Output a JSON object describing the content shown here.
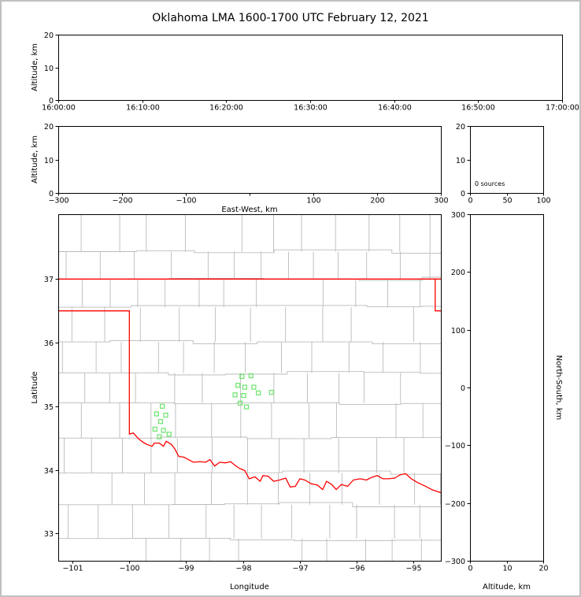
{
  "window": {
    "title": "Oklahoma LMA 1600-1700 UTC February 12, 2021"
  },
  "colors": {
    "frame": "#c0c0c0",
    "background": "#ffffff",
    "axis": "#000000",
    "county_line": "#bbbbbb",
    "state_border": "#ff0000",
    "source_marker": "#6be36b"
  },
  "chart_data": [
    {
      "id": "time_height",
      "type": "scatter",
      "xlabel": "",
      "ylabel": "Altitude, km",
      "xlim": [
        0,
        6
      ],
      "xticks": [
        0,
        1,
        2,
        3,
        4,
        5,
        6
      ],
      "xtick_labels": [
        "16:00:00",
        "16:10:00",
        "16:20:00",
        "16:30:00",
        "16:40:00",
        "16:50:00",
        "17:00:00"
      ],
      "ylim": [
        0,
        20
      ],
      "yticks": [
        0,
        10,
        20
      ],
      "ytick_labels": [
        "0",
        "10",
        "20"
      ],
      "points": []
    },
    {
      "id": "ew_height",
      "type": "scatter",
      "xlabel": "East-West, km",
      "ylabel": "Altitude, km",
      "xlim": [
        -300,
        300
      ],
      "xticks": [
        -300,
        -200,
        -100,
        0,
        100,
        200,
        300
      ],
      "xtick_labels": [
        "−300",
        "−200",
        "−100",
        "",
        "100",
        "200",
        "300"
      ],
      "ylim": [
        0,
        20
      ],
      "yticks": [
        0,
        10,
        20
      ],
      "ytick_labels": [
        "0",
        "10",
        "20"
      ],
      "points": []
    },
    {
      "id": "alt_histogram",
      "type": "bar",
      "annotation": "0 sources",
      "xlim": [
        0,
        100
      ],
      "xticks": [
        0,
        50,
        100
      ],
      "xtick_labels": [
        "0",
        "50",
        "100"
      ],
      "ylim": [
        0,
        20
      ],
      "yticks": [
        0,
        10,
        20
      ],
      "ytick_labels": [
        "0",
        "10",
        "20"
      ],
      "values": []
    },
    {
      "id": "plan_view",
      "type": "scatter",
      "xlabel": "Longitude",
      "ylabel": "Latitude",
      "xlim": [
        -101.25,
        -94.52
      ],
      "xticks": [
        -101,
        -100,
        -99,
        -98,
        -97,
        -96,
        -95
      ],
      "xtick_labels": [
        "−101",
        "−100",
        "−99",
        "−98",
        "−97",
        "−96",
        "−95"
      ],
      "ylim": [
        32.57,
        38.02
      ],
      "yticks": [
        33,
        34,
        35,
        36,
        37
      ],
      "ytick_labels": [
        "33",
        "34",
        "35",
        "36",
        "37"
      ],
      "points": [
        [
          -99.42,
          35.0
        ],
        [
          -99.52,
          34.88
        ],
        [
          -99.36,
          34.86
        ],
        [
          -99.45,
          34.76
        ],
        [
          -99.55,
          34.64
        ],
        [
          -99.4,
          34.62
        ],
        [
          -99.3,
          34.56
        ],
        [
          -99.47,
          34.52
        ],
        [
          -98.02,
          35.47
        ],
        [
          -97.86,
          35.48
        ],
        [
          -98.09,
          35.33
        ],
        [
          -97.97,
          35.3
        ],
        [
          -97.81,
          35.3
        ],
        [
          -98.14,
          35.18
        ],
        [
          -97.99,
          35.17
        ],
        [
          -97.73,
          35.21
        ],
        [
          -97.5,
          35.22
        ],
        [
          -98.05,
          35.05
        ],
        [
          -97.94,
          34.99
        ]
      ],
      "layers": {
        "county_grid": {
          "seed": 20210212,
          "lat_step": 0.45,
          "lon_step": 0.53
        },
        "state_border": [
          {
            "name": "kansas-oklahoma-border",
            "points": [
              [
                -101.25,
                37.0
              ],
              [
                -94.52,
                37.0
              ]
            ]
          },
          {
            "name": "oklahoma-west-south-border",
            "points": [
              [
                -101.25,
                36.5
              ],
              [
                -100.0,
                36.5
              ],
              [
                -100.0,
                34.56
              ],
              [
                -99.93,
                34.58
              ],
              [
                -99.85,
                34.5
              ],
              [
                -99.77,
                34.44
              ],
              [
                -99.69,
                34.4
              ],
              [
                -99.6,
                34.37
              ],
              [
                -99.56,
                34.42
              ],
              [
                -99.47,
                34.42
              ],
              [
                -99.4,
                34.37
              ],
              [
                -99.35,
                34.45
              ],
              [
                -99.26,
                34.4
              ],
              [
                -99.2,
                34.33
              ],
              [
                -99.13,
                34.21
              ],
              [
                -99.04,
                34.2
              ],
              [
                -98.96,
                34.16
              ],
              [
                -98.87,
                34.12
              ],
              [
                -98.76,
                34.13
              ],
              [
                -98.66,
                34.12
              ],
              [
                -98.58,
                34.16
              ],
              [
                -98.5,
                34.06
              ],
              [
                -98.41,
                34.12
              ],
              [
                -98.31,
                34.11
              ],
              [
                -98.22,
                34.13
              ],
              [
                -98.14,
                34.07
              ],
              [
                -98.06,
                34.02
              ],
              [
                -97.97,
                33.99
              ],
              [
                -97.89,
                33.86
              ],
              [
                -97.79,
                33.89
              ],
              [
                -97.7,
                33.82
              ],
              [
                -97.65,
                33.91
              ],
              [
                -97.56,
                33.9
              ],
              [
                -97.46,
                33.82
              ],
              [
                -97.36,
                33.84
              ],
              [
                -97.25,
                33.87
              ],
              [
                -97.17,
                33.73
              ],
              [
                -97.08,
                33.74
              ],
              [
                -97.0,
                33.86
              ],
              [
                -96.91,
                33.84
              ],
              [
                -96.8,
                33.78
              ],
              [
                -96.69,
                33.76
              ],
              [
                -96.6,
                33.69
              ],
              [
                -96.53,
                33.82
              ],
              [
                -96.44,
                33.77
              ],
              [
                -96.36,
                33.69
              ],
              [
                -96.27,
                33.77
              ],
              [
                -96.16,
                33.74
              ],
              [
                -96.06,
                33.84
              ],
              [
                -95.94,
                33.86
              ],
              [
                -95.83,
                33.84
              ],
              [
                -95.74,
                33.88
              ],
              [
                -95.64,
                33.91
              ],
              [
                -95.54,
                33.86
              ],
              [
                -95.44,
                33.86
              ],
              [
                -95.33,
                33.87
              ],
              [
                -95.24,
                33.92
              ],
              [
                -95.14,
                33.94
              ],
              [
                -95.04,
                33.86
              ],
              [
                -94.93,
                33.8
              ],
              [
                -94.81,
                33.75
              ],
              [
                -94.68,
                33.69
              ],
              [
                -94.52,
                33.64
              ]
            ]
          },
          {
            "name": "oklahoma-east-border",
            "points": [
              [
                -94.62,
                37.0
              ],
              [
                -94.62,
                36.5
              ],
              [
                -94.52,
                36.5
              ]
            ]
          }
        ]
      }
    },
    {
      "id": "ns_height",
      "type": "scatter",
      "xlabel": "Altitude, km",
      "ylabel": "North-South, km",
      "ylabel_side": "right",
      "xlim": [
        0,
        20
      ],
      "xticks": [
        0,
        10,
        20
      ],
      "xtick_labels": [
        "0",
        "10",
        "20"
      ],
      "ylim": [
        -300,
        300
      ],
      "yticks": [
        -300,
        -200,
        -100,
        0,
        100,
        200,
        300
      ],
      "ytick_labels": [
        "−300",
        "−200",
        "−100",
        "0",
        "100",
        "200",
        "300"
      ],
      "points": []
    }
  ]
}
